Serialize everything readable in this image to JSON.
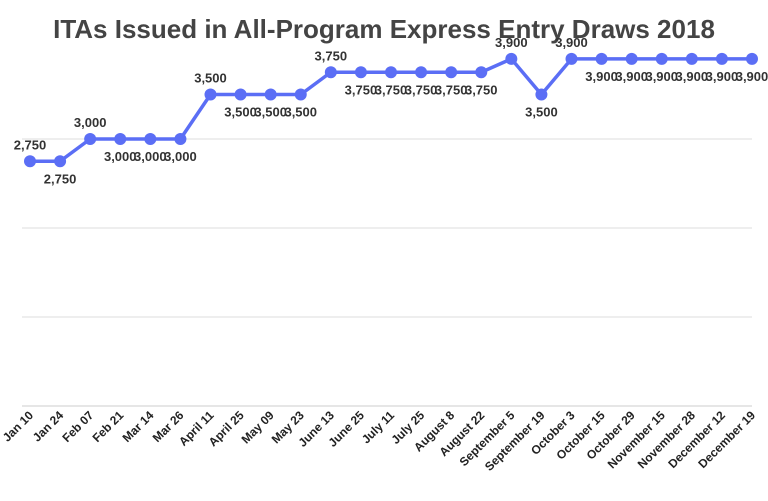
{
  "chart_data": {
    "type": "line",
    "title": "ITAs Issued in All-Program Express Entry Draws 2018",
    "xlabel": "",
    "ylabel": "",
    "categories": [
      "Jan 10",
      "Jan 24",
      "Feb 07",
      "Feb 21",
      "Mar 14",
      "Mar 26",
      "April 11",
      "April 25",
      "May 09",
      "May 23",
      "June 13",
      "June 25",
      "July 11",
      "July 25",
      "August 8",
      "August 22",
      "September 5",
      "September 19",
      "October 3",
      "October 15",
      "October 29",
      "November 15",
      "November 28",
      "December 12",
      "December 19"
    ],
    "series": [
      {
        "values": [
          2750,
          2750,
          3000,
          3000,
          3000,
          3000,
          3500,
          3500,
          3500,
          3500,
          3750,
          3750,
          3750,
          3750,
          3750,
          3750,
          3900,
          3500,
          3900,
          3900,
          3900,
          3900,
          3900,
          3900,
          3900
        ],
        "labels": [
          "2,750",
          "2,750",
          "3,000",
          "3,000",
          "3,000",
          "3,000",
          "3,500",
          "3,500",
          "3,500",
          "3,500",
          "3,750",
          "3,750",
          "3,750",
          "3,750",
          "3,750",
          "3,750",
          "3,900",
          "3,500",
          "3,900",
          "3,900",
          "3,900",
          "3,900",
          "3,900",
          "3,900",
          "3,900"
        ]
      }
    ],
    "ylim": [
      0,
      4000
    ],
    "grid": true,
    "legend": "none",
    "color": "#5b6ef5"
  }
}
